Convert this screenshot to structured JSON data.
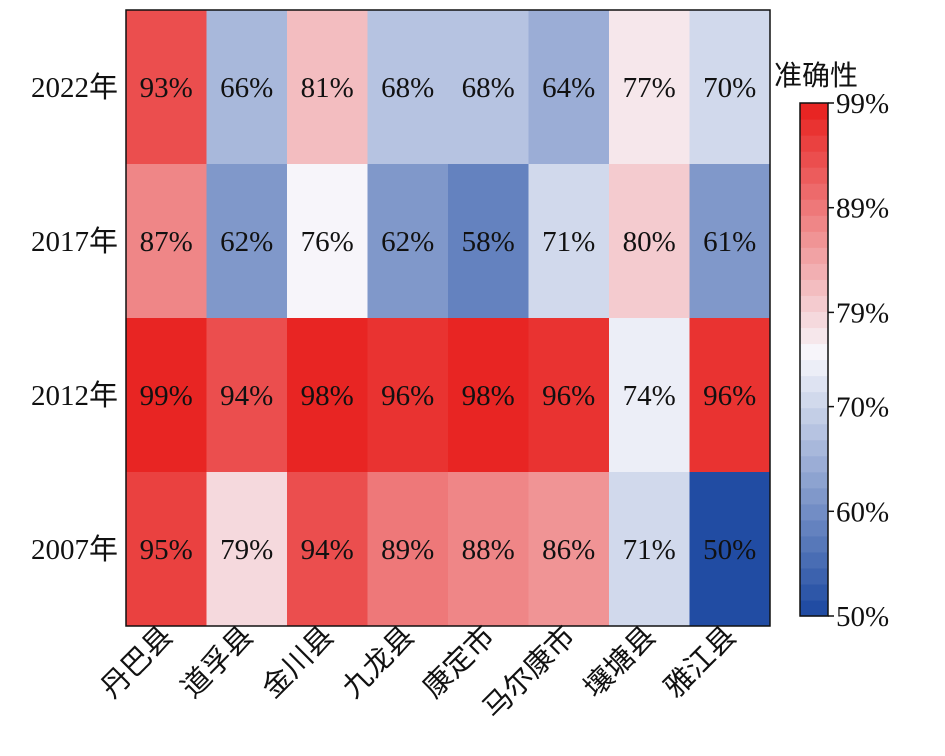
{
  "chart_data": {
    "type": "heatmap",
    "title": "",
    "xlabel": "",
    "ylabel": "",
    "rows": [
      "2022年",
      "2017年",
      "2012年",
      "2007年"
    ],
    "columns": [
      "丹巴县",
      "道孚县",
      "金川县",
      "九龙县",
      "康定市",
      "马尔康市",
      "壤塘县",
      "雅江县"
    ],
    "values": [
      [
        93,
        66,
        81,
        68,
        68,
        64,
        77,
        70
      ],
      [
        87,
        62,
        76,
        62,
        58,
        71,
        80,
        61
      ],
      [
        99,
        94,
        98,
        96,
        98,
        96,
        74,
        96
      ],
      [
        95,
        79,
        94,
        89,
        88,
        86,
        71,
        50
      ]
    ],
    "value_suffix": "%",
    "colorbar": {
      "title": "准确性",
      "min": 50,
      "max": 99,
      "ticks": [
        50,
        60,
        70,
        79,
        89,
        99
      ],
      "tick_labels": [
        "50%",
        "60%",
        "70%",
        "79%",
        "89%",
        "99%"
      ],
      "levels": 32,
      "low_color": "#1a47a0",
      "mid_color": "#f7f7fc",
      "high_color": "#e81e1c"
    }
  }
}
